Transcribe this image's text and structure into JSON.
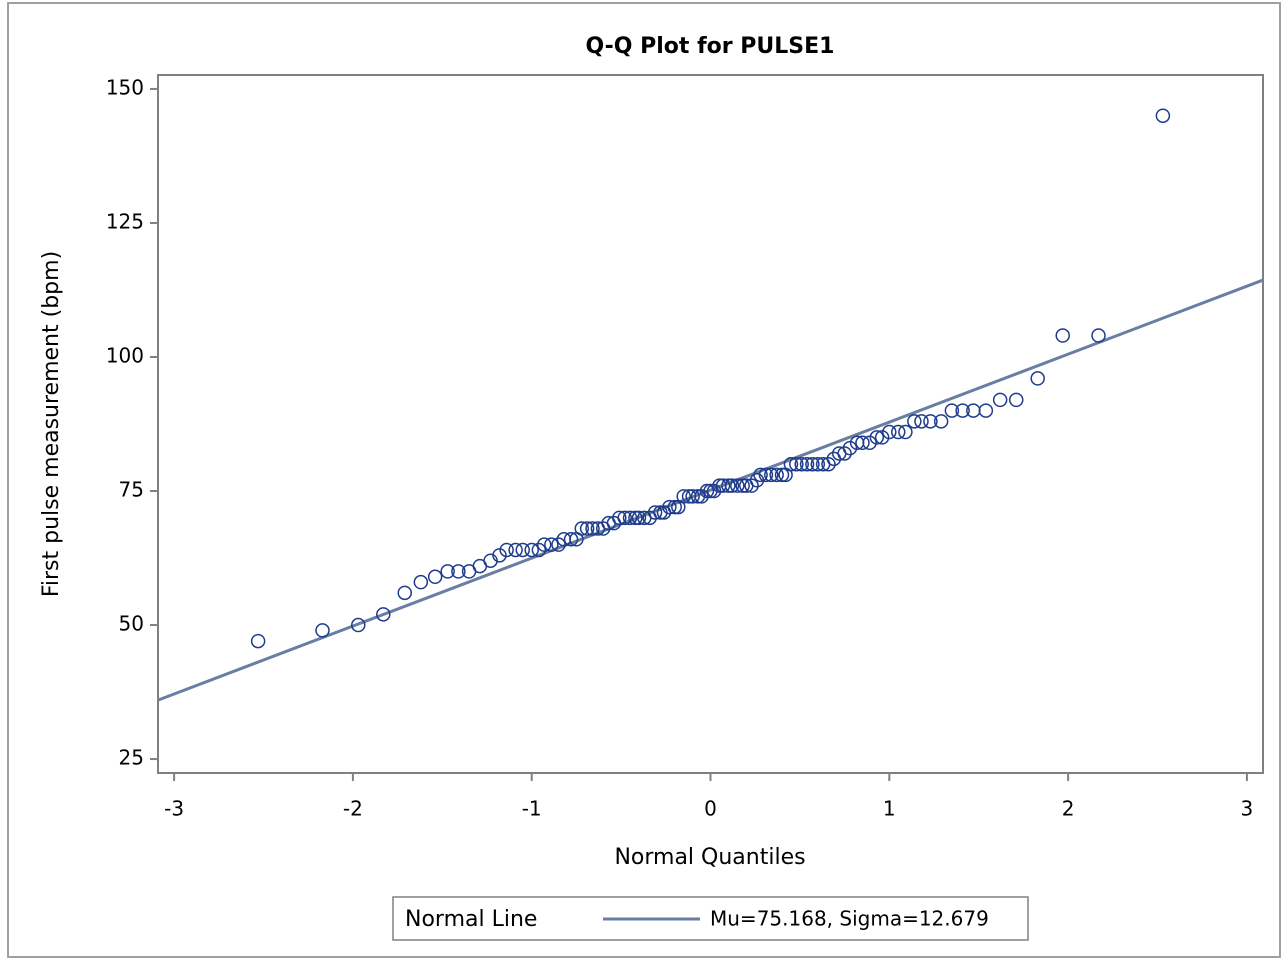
{
  "chart_data": {
    "type": "scatter",
    "title": "Q-Q Plot for PULSE1",
    "x_label": "Normal Quantiles",
    "y_label": "First pulse measurement (bpm)",
    "x": [
      -2.53,
      -2.17,
      -1.97,
      -1.83,
      -1.71,
      -1.62,
      -1.54,
      -1.47,
      -1.41,
      -1.35,
      -1.29,
      -1.23,
      -1.18,
      -1.14,
      -1.09,
      -1.05,
      -1.0,
      -0.96,
      -0.93,
      -0.89,
      -0.85,
      -0.82,
      -0.78,
      -0.75,
      -0.72,
      -0.69,
      -0.66,
      -0.63,
      -0.6,
      -0.57,
      -0.54,
      -0.51,
      -0.48,
      -0.45,
      -0.42,
      -0.4,
      -0.37,
      -0.34,
      -0.31,
      -0.28,
      -0.26,
      -0.23,
      -0.2,
      -0.18,
      -0.15,
      -0.12,
      -0.1,
      -0.07,
      -0.05,
      -0.02,
      0.0,
      0.02,
      0.05,
      0.07,
      0.1,
      0.12,
      0.15,
      0.18,
      0.2,
      0.23,
      0.26,
      0.28,
      0.31,
      0.34,
      0.37,
      0.4,
      0.42,
      0.45,
      0.48,
      0.51,
      0.54,
      0.57,
      0.6,
      0.63,
      0.66,
      0.69,
      0.72,
      0.75,
      0.78,
      0.82,
      0.85,
      0.89,
      0.93,
      0.96,
      1.0,
      1.05,
      1.09,
      1.14,
      1.18,
      1.23,
      1.29,
      1.35,
      1.41,
      1.47,
      1.54,
      1.62,
      1.71,
      1.83,
      1.97,
      2.17,
      2.53
    ],
    "values": [
      47,
      49,
      50,
      52,
      56,
      58,
      59,
      60,
      60,
      60,
      61,
      62,
      63,
      64,
      64,
      64,
      64,
      64,
      65,
      65,
      65,
      66,
      66,
      66,
      68,
      68,
      68,
      68,
      68,
      69,
      69,
      70,
      70,
      70,
      70,
      70,
      70,
      70,
      71,
      71,
      71,
      72,
      72,
      72,
      74,
      74,
      74,
      74,
      74,
      75,
      75,
      75,
      76,
      76,
      76,
      76,
      76,
      76,
      76,
      76,
      77,
      78,
      78,
      78,
      78,
      78,
      78,
      80,
      80,
      80,
      80,
      80,
      80,
      80,
      80,
      81,
      82,
      82,
      83,
      84,
      84,
      84,
      85,
      85,
      86,
      86,
      86,
      88,
      88,
      88,
      88,
      90,
      90,
      90,
      90,
      92,
      92,
      96,
      104,
      104,
      145
    ],
    "color": "#1f3c8c",
    "reference_line": {
      "name": "Normal Line",
      "label": "Mu=75.168, Sigma=12.679",
      "mu": 75.168,
      "sigma": 12.679,
      "color": "#6a7ea3"
    },
    "xlim": [
      -3.09,
      3.09
    ],
    "xticks": [
      -3,
      -2,
      -1,
      0,
      1,
      2,
      3
    ],
    "ylim": [
      22.4,
      152.6
    ],
    "yticks": [
      25,
      50,
      75,
      100,
      125,
      150
    ]
  }
}
